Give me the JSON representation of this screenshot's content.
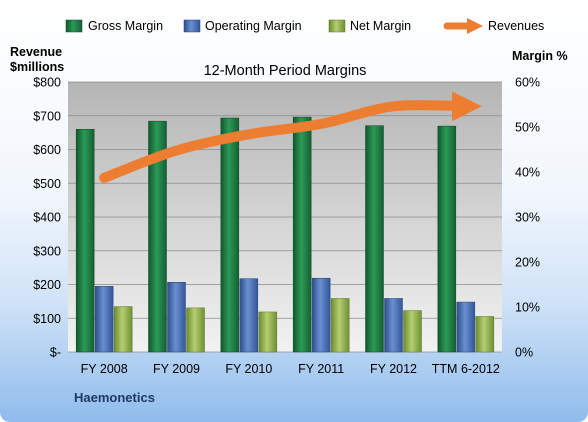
{
  "chart_data": {
    "type": "bar",
    "title": "12-Month Period Margins",
    "company": "Haemonetics",
    "left_axis_label_line1": "Revenue",
    "left_axis_label_line2": "$millions",
    "right_axis_label": "Margin %",
    "categories": [
      "FY 2008",
      "FY 2009",
      "FY 2010",
      "FY 2011",
      "FY 2012",
      "TTM 6-2012"
    ],
    "left_ylim": [
      0,
      800
    ],
    "left_ticks": [
      "$-",
      "$100",
      "$200",
      "$300",
      "$400",
      "$500",
      "$600",
      "$700",
      "$800"
    ],
    "right_ylim": [
      0,
      60
    ],
    "right_ticks": [
      "0%",
      "10%",
      "20%",
      "30%",
      "40%",
      "50%",
      "60%"
    ],
    "legend_position": "top",
    "grid": true,
    "series": [
      {
        "name": "Gross Margin",
        "axis": "right",
        "values": [
          49.5,
          51.3,
          52.0,
          52.2,
          50.3,
          50.2
        ],
        "color": "#1f7a45"
      },
      {
        "name": "Operating Margin",
        "axis": "right",
        "values": [
          14.6,
          15.5,
          16.3,
          16.4,
          11.9,
          11.1
        ],
        "color": "#4a70b8"
      },
      {
        "name": "Net Margin",
        "axis": "right",
        "values": [
          10.1,
          9.8,
          8.9,
          11.9,
          9.2,
          7.9
        ],
        "color": "#8fae4c"
      },
      {
        "name": "Revenues",
        "axis": "left",
        "type": "line",
        "values": [
          516,
          597,
          645,
          676,
          728,
          728
        ],
        "color": "#ed7d31"
      }
    ]
  }
}
